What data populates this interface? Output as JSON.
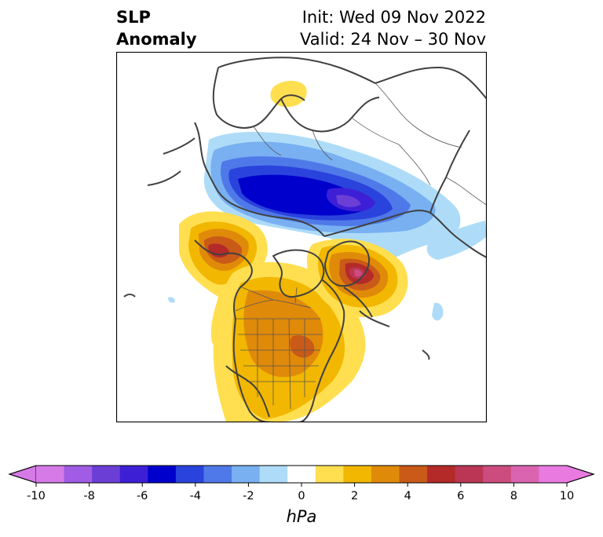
{
  "title": {
    "left_line1": "SLP",
    "left_line2": "Anomaly",
    "right_line1": "Init: Wed 09 Nov 2022",
    "right_line2": "Valid: 24 Nov – 30 Nov"
  },
  "map": {
    "projection": "polar stereographic (North Pole)",
    "features": [
      {
        "name": "Siberian low anomaly",
        "sign": "negative",
        "min_hPa": -6
      },
      {
        "name": "Northeast Pacific / Alaska high anomaly",
        "sign": "positive",
        "max_hPa": 6
      },
      {
        "name": "Greenland high anomaly",
        "sign": "positive",
        "max_hPa": 8
      },
      {
        "name": "Central North America high anomaly",
        "sign": "positive",
        "max_hPa": 4
      },
      {
        "name": "Scandinavia high anomaly",
        "sign": "positive",
        "max_hPa": 2
      }
    ]
  },
  "colorbar": {
    "unit": "hPa",
    "ticks": [
      "-10",
      "-8",
      "-6",
      "-4",
      "-2",
      "0",
      "2",
      "4",
      "6",
      "8",
      "10"
    ],
    "colors": [
      "#d57ae6",
      "#a05ce4",
      "#6b3fd6",
      "#3d20d5",
      "#0000cc",
      "#2a43dc",
      "#4f79e8",
      "#78b0f1",
      "#aedcf8",
      "#ffffff",
      "#ffdf50",
      "#f2b700",
      "#e08a0a",
      "#c95a18",
      "#b32a28",
      "#bb3654",
      "#cc4c7e",
      "#da64b0",
      "#e87ae0"
    ],
    "extend_low_color": "#d57ae6",
    "extend_high_color": "#e87ae0"
  }
}
